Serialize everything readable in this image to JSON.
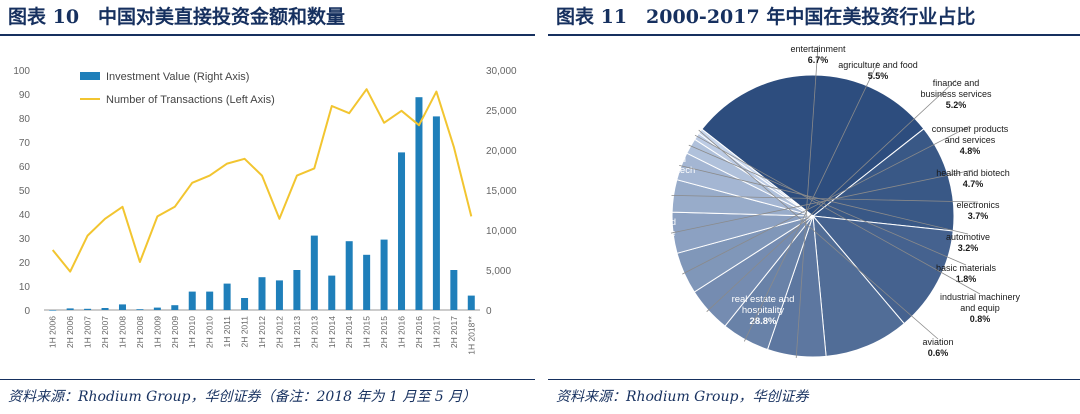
{
  "left_panel": {
    "title": "图表 10　中国对美直接投资金额和数量",
    "source": "资料来源：Rhodium Group，华创证券（备注：2018 年为 1 月至 5 月）"
  },
  "right_panel": {
    "title": "图表 11　2000-2017 年中国在美投资行业占比",
    "source": "资料来源：Rhodium Group，华创证券"
  },
  "colors": {
    "bar": "#1f7fba",
    "line": "#f2c530",
    "pie_dark": "#2d4d7e",
    "pie_light": "#c8d6ec",
    "title": "#16305f"
  },
  "chart_data": [
    {
      "type": "bar",
      "categories": [
        "1H 2006",
        "2H 2006",
        "1H 2007",
        "2H 2007",
        "1H 2008",
        "2H 2008",
        "1H 2009",
        "2H 2009",
        "1H 2010",
        "2H 2010",
        "1H 2011",
        "2H 2011",
        "1H 2012",
        "2H 2012",
        "1H 2013",
        "2H 2013",
        "1H 2014",
        "2H 2014",
        "1H 2015",
        "2H 2015",
        "1H 2016",
        "2H 2016",
        "1H 2017",
        "2H 2017",
        "1H 2018**"
      ],
      "series": [
        {
          "name": "Investment Value (Right Axis)",
          "type": "bar",
          "axis": "right",
          "values": [
            0,
            200,
            150,
            250,
            700,
            100,
            300,
            600,
            2300,
            2300,
            3300,
            1500,
            4100,
            3700,
            5000,
            9300,
            4300,
            8600,
            6900,
            8800,
            19700,
            26600,
            24200,
            5000,
            1800
          ]
        },
        {
          "name": "Number of Transactions (Left Axis)",
          "type": "line",
          "axis": "left",
          "values": [
            25,
            16,
            31,
            38,
            43,
            20,
            39,
            43,
            53,
            56,
            61,
            63,
            56,
            38,
            56,
            59,
            85,
            82,
            92,
            78,
            83,
            77,
            91,
            68,
            39
          ]
        }
      ],
      "left_axis": {
        "ylim": [
          0,
          100
        ],
        "ticks": [
          "0",
          "10",
          "20",
          "30",
          "40",
          "50",
          "60",
          "70",
          "80",
          "90",
          "100"
        ]
      },
      "right_axis": {
        "ylim": [
          0,
          30000
        ],
        "ticks": [
          "0",
          "5,000",
          "10,000",
          "15,000",
          "20,000",
          "25,000",
          "30,000"
        ]
      },
      "legend": "top-left"
    },
    {
      "type": "pie",
      "slices": [
        {
          "label": "real estate and hospitality",
          "value": 28.8,
          "display": "28.8%"
        },
        {
          "label": "transport and infrastructure",
          "value": 12.3,
          "display": "12.3%"
        },
        {
          "label": "information and communication tech",
          "value": 12.1,
          "display": "12.1%"
        },
        {
          "label": "energy",
          "value": 9.7,
          "display": "9.7%"
        },
        {
          "label": "entertainment",
          "value": 6.7,
          "display": "6.7%"
        },
        {
          "label": "agriculture and food",
          "value": 5.5,
          "display": "5.5%"
        },
        {
          "label": "finance and business services",
          "value": 5.2,
          "display": "5.2%"
        },
        {
          "label": "consumer products and services",
          "value": 4.8,
          "display": "4.8%"
        },
        {
          "label": "health and biotech",
          "value": 4.7,
          "display": "4.7%"
        },
        {
          "label": "electronics",
          "value": 3.7,
          "display": "3.7%"
        },
        {
          "label": "automotive",
          "value": 3.2,
          "display": "3.2%"
        },
        {
          "label": "basic materials",
          "value": 1.8,
          "display": "1.8%"
        },
        {
          "label": "industrial machinery and equip",
          "value": 0.8,
          "display": "0.8%"
        },
        {
          "label": "aviation",
          "value": 0.6,
          "display": "0.6%"
        }
      ],
      "label_lines": [
        [
          "real estate and",
          "hospitality"
        ],
        [
          "transport and",
          "infrastructure"
        ],
        [
          "Information and",
          "communication tech"
        ],
        [
          "energy"
        ],
        [
          "entertainment"
        ],
        [
          "agriculture and food"
        ],
        [
          "finance and",
          "business services"
        ],
        [
          "consumer products",
          "and services"
        ],
        [
          "health and biotech"
        ],
        [
          "electronics"
        ],
        [
          "automotive"
        ],
        [
          "basic materials"
        ],
        [
          "industrial machinery",
          "and equip"
        ],
        [
          "aviation"
        ]
      ]
    }
  ]
}
